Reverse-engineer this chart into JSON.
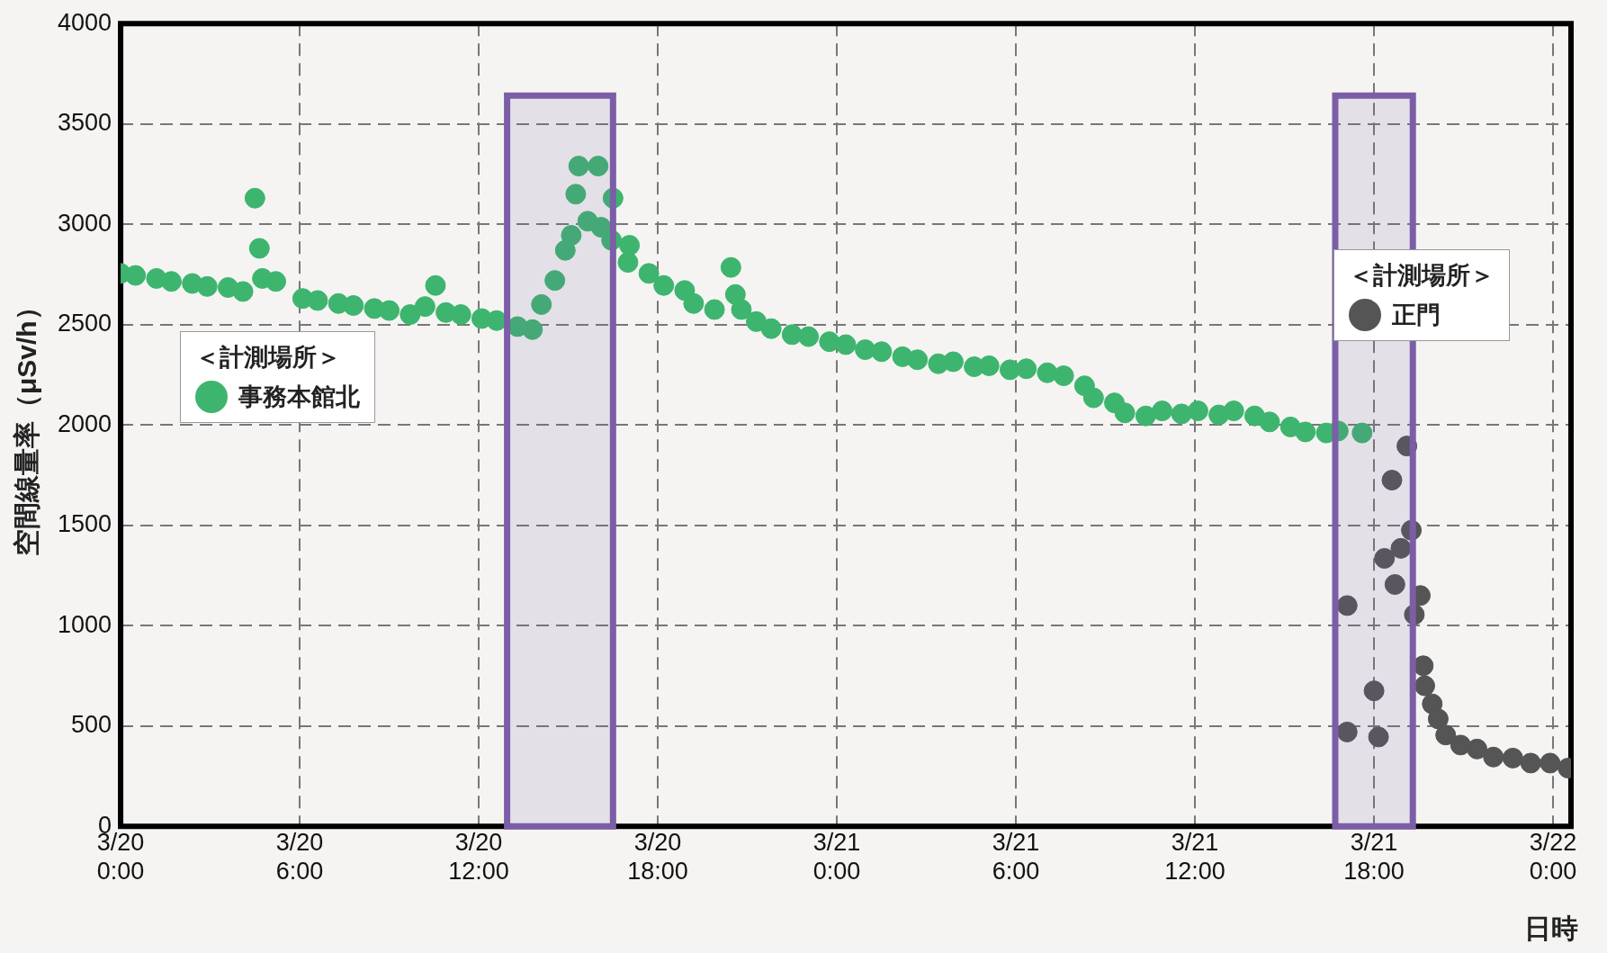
{
  "chart_data": {
    "type": "scatter",
    "ylabel": "空間線量率（μSv/h）",
    "xlabel": "日時",
    "legend_title": "＜計測場所＞",
    "legend": "left",
    "grid": true,
    "marker": "circle",
    "xlim": [
      "--03-20T00:00",
      "--03-22T00:36"
    ],
    "xticks": [
      {
        "value": "--03-20T00:00",
        "label": "3/20 0:00"
      },
      {
        "value": "--03-20T06:00",
        "label": "3/20 6:00"
      },
      {
        "value": "--03-20T12:00",
        "label": "3/20 12:00"
      },
      {
        "value": "--03-20T18:00",
        "label": "3/20 18:00"
      },
      {
        "value": "--03-21T00:00",
        "label": "3/21 0:00"
      },
      {
        "value": "--03-21T06:00",
        "label": "3/21 6:00"
      },
      {
        "value": "--03-21T12:00",
        "label": "3/21 12:00"
      },
      {
        "value": "--03-21T18:00",
        "label": "3/21 18:00"
      },
      {
        "value": "--03-22T00:00",
        "label": "3/22 0:00"
      }
    ],
    "ylim": [
      0,
      4000
    ],
    "yticks": [
      0,
      500,
      1000,
      1500,
      2000,
      2500,
      3000,
      3500,
      4000
    ],
    "bands": [
      {
        "axis": "x",
        "from": "--03-20T12:57",
        "to": "--03-20T16:30",
        "color": "#7b5ea7"
      },
      {
        "axis": "x",
        "from": "--03-21T16:42",
        "to": "--03-21T19:18",
        "color": "#7b5ea7"
      }
    ],
    "series": [
      {
        "name": "事務本館北",
        "color": "#3db56f",
        "x": [
          "--03-20T00:00",
          "--03-20T00:30",
          "--03-20T01:12",
          "--03-20T01:42",
          "--03-20T02:24",
          "--03-20T02:54",
          "--03-20T03:36",
          "--03-20T04:06",
          "--03-20T04:30",
          "--03-20T04:39",
          "--03-20T04:45",
          "--03-20T05:12",
          "--03-20T06:06",
          "--03-20T06:36",
          "--03-20T07:18",
          "--03-20T07:48",
          "--03-20T08:30",
          "--03-20T09:00",
          "--03-20T09:42",
          "--03-20T10:12",
          "--03-20T10:33",
          "--03-20T10:54",
          "--03-20T11:24",
          "--03-20T12:06",
          "--03-20T12:36",
          "--03-20T13:18",
          "--03-20T13:48",
          "--03-20T14:06",
          "--03-20T14:33",
          "--03-20T14:54",
          "--03-20T15:06",
          "--03-20T15:15",
          "--03-20T15:21",
          "--03-20T15:39",
          "--03-20T16:00",
          "--03-20T16:06",
          "--03-20T16:30",
          "--03-20T16:27",
          "--03-20T17:03",
          "--03-20T17:00",
          "--03-20T17:42",
          "--03-20T18:12",
          "--03-20T18:54",
          "--03-20T19:12",
          "--03-20T19:54",
          "--03-20T20:27",
          "--03-20T20:36",
          "--03-20T20:48",
          "--03-20T21:18",
          "--03-20T21:48",
          "--03-20T22:30",
          "--03-20T23:03",
          "--03-20T23:45",
          "--03-21T00:18",
          "--03-21T00:57",
          "--03-21T01:30",
          "--03-21T02:12",
          "--03-21T02:42",
          "--03-21T03:24",
          "--03-21T03:54",
          "--03-21T04:36",
          "--03-21T05:06",
          "--03-21T05:48",
          "--03-21T06:21",
          "--03-21T07:03",
          "--03-21T07:36",
          "--03-21T08:18",
          "--03-21T08:36",
          "--03-21T09:18",
          "--03-21T09:39",
          "--03-21T10:21",
          "--03-21T10:54",
          "--03-21T11:33",
          "--03-21T12:06",
          "--03-21T12:48",
          "--03-21T13:18",
          "--03-21T14:00",
          "--03-21T14:30",
          "--03-21T15:12",
          "--03-21T15:42",
          "--03-21T16:24",
          "--03-21T16:48",
          "--03-21T17:36"
        ],
        "values": [
          2755,
          2745,
          2730,
          2715,
          2705,
          2690,
          2685,
          2665,
          3130,
          2880,
          2730,
          2715,
          2630,
          2620,
          2605,
          2595,
          2580,
          2570,
          2550,
          2590,
          2695,
          2560,
          2550,
          2530,
          2520,
          2490,
          2475,
          2600,
          2720,
          2870,
          2945,
          3150,
          3290,
          3015,
          3290,
          2985,
          3130,
          2920,
          2895,
          2810,
          2755,
          2695,
          2670,
          2605,
          2575,
          2785,
          2650,
          2575,
          2515,
          2480,
          2450,
          2440,
          2415,
          2400,
          2375,
          2365,
          2340,
          2325,
          2305,
          2315,
          2290,
          2295,
          2275,
          2280,
          2260,
          2245,
          2195,
          2135,
          2110,
          2060,
          2045,
          2070,
          2055,
          2070,
          2050,
          2070,
          2045,
          2015,
          1990,
          1965,
          1960,
          1970,
          1960
        ]
      },
      {
        "name": "正門",
        "color": "#555555",
        "x": [
          "--03-21T17:06",
          "--03-21T17:06",
          "--03-21T18:00",
          "--03-21T18:09",
          "--03-21T18:21",
          "--03-21T18:36",
          "--03-21T18:42",
          "--03-21T18:54",
          "--03-21T19:06",
          "--03-21T19:15",
          "--03-21T19:21",
          "--03-21T19:33",
          "--03-21T19:39",
          "--03-21T19:42",
          "--03-21T19:57",
          "--03-21T20:09",
          "--03-21T20:24",
          "--03-21T20:54",
          "--03-21T21:27",
          "--03-21T22:00",
          "--03-21T22:39",
          "--03-21T23:15",
          "--03-21T23:54",
          "--03-22T00:30"
        ],
        "values": [
          1100,
          470,
          675,
          445,
          1335,
          1725,
          1205,
          1385,
          1895,
          1475,
          1055,
          1150,
          800,
          700,
          610,
          535,
          455,
          405,
          385,
          345,
          340,
          315,
          315,
          290
        ]
      }
    ]
  }
}
